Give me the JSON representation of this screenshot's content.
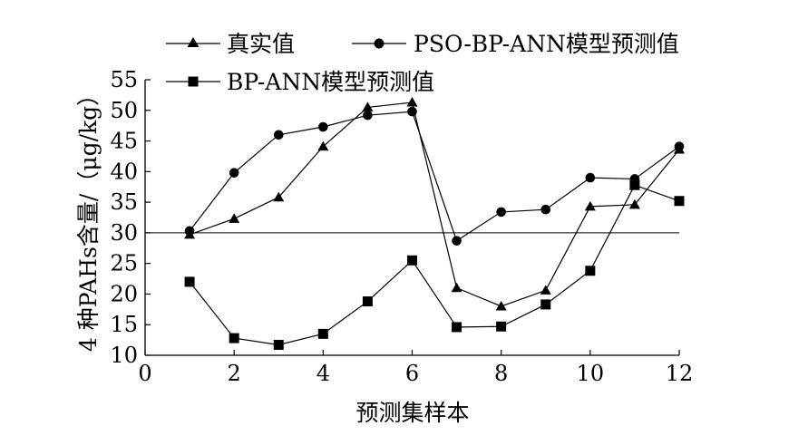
{
  "chart_data": {
    "type": "line",
    "title": "",
    "xlabel": "预测集样本",
    "ylabel": "4 种PAHs含量/（μg/kg）",
    "xlim": [
      0,
      12
    ],
    "ylim": [
      10,
      55
    ],
    "x_ticks": [
      "0",
      "2",
      "4",
      "6",
      "8",
      "10",
      "12"
    ],
    "y_ticks": [
      "10",
      "15",
      "20",
      "25",
      "30",
      "35",
      "40",
      "45",
      "50",
      "55"
    ],
    "x": [
      1,
      2,
      3,
      4,
      5,
      6,
      7,
      8,
      9,
      10,
      11,
      12
    ],
    "reference_line": 30,
    "grid": false,
    "legend_position": "top",
    "series": [
      {
        "name": "真实值",
        "marker": "triangle",
        "values": [
          29.7,
          32.3,
          35.8,
          44.1,
          50.5,
          51.3,
          21.0,
          18.0,
          20.6,
          34.3,
          34.6,
          43.6
        ]
      },
      {
        "name": "PSO-BP-ANN模型预测值",
        "marker": "circle",
        "values": [
          30.3,
          39.8,
          46.0,
          47.3,
          49.2,
          49.8,
          28.7,
          33.4,
          33.8,
          39.0,
          38.8,
          44.1
        ]
      },
      {
        "name": "BP-ANN模型预测值",
        "marker": "square",
        "values": [
          22.0,
          12.8,
          11.7,
          13.5,
          18.8,
          25.5,
          14.6,
          14.7,
          18.3,
          23.8,
          37.8,
          35.2
        ]
      }
    ]
  }
}
